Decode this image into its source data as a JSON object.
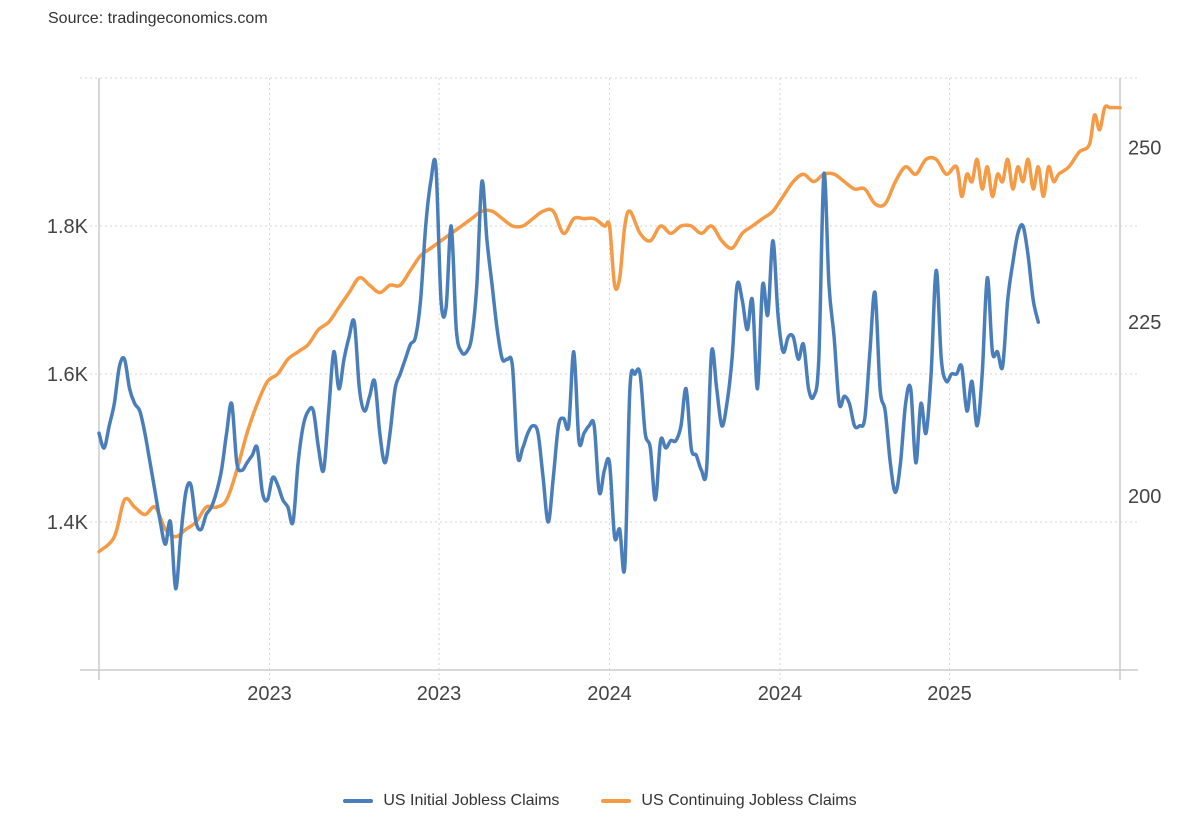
{
  "source": "Source: tradingeconomics.com",
  "colors": {
    "initial": "#4a7ebb",
    "continuing": "#f59a45",
    "grid": "#d6d6d6",
    "axis": "#cccccc"
  },
  "legend": [
    {
      "label": "US Initial Jobless Claims",
      "color": "#4a7ebb"
    },
    {
      "label": "US Continuing Jobless Claims",
      "color": "#f59a45"
    }
  ],
  "chart_data": {
    "type": "line",
    "title": "",
    "xlabel": "",
    "ylabel": "",
    "grid": true,
    "legend_position": "bottom",
    "x_ticks": [
      {
        "label": "2023",
        "t": 0.167
      },
      {
        "label": "2023",
        "t": 0.333
      },
      {
        "label": "2024",
        "t": 0.5
      },
      {
        "label": "2024",
        "t": 0.667
      },
      {
        "label": "2025",
        "t": 0.833
      }
    ],
    "y_left": {
      "ticks": [
        {
          "v": 1.4,
          "label": "1.4K"
        },
        {
          "v": 1.6,
          "label": "1.6K"
        },
        {
          "v": 1.8,
          "label": "1.8K"
        }
      ],
      "range": [
        1.2,
        2.0
      ]
    },
    "y_right": {
      "ticks": [
        {
          "v": 200,
          "label": "200"
        },
        {
          "v": 225,
          "label": "225"
        },
        {
          "v": 250,
          "label": "250"
        }
      ],
      "range": [
        175,
        260
      ]
    },
    "series": [
      {
        "name": "US Continuing Jobless Claims",
        "axis": "left",
        "color": "#f59a45",
        "values": [
          [
            0.0,
            1.36
          ],
          [
            0.015,
            1.38
          ],
          [
            0.025,
            1.43
          ],
          [
            0.035,
            1.42
          ],
          [
            0.045,
            1.41
          ],
          [
            0.055,
            1.42
          ],
          [
            0.065,
            1.39
          ],
          [
            0.075,
            1.38
          ],
          [
            0.085,
            1.39
          ],
          [
            0.095,
            1.4
          ],
          [
            0.105,
            1.42
          ],
          [
            0.115,
            1.42
          ],
          [
            0.125,
            1.43
          ],
          [
            0.135,
            1.47
          ],
          [
            0.145,
            1.52
          ],
          [
            0.155,
            1.56
          ],
          [
            0.165,
            1.59
          ],
          [
            0.175,
            1.6
          ],
          [
            0.185,
            1.62
          ],
          [
            0.195,
            1.63
          ],
          [
            0.205,
            1.64
          ],
          [
            0.215,
            1.66
          ],
          [
            0.225,
            1.67
          ],
          [
            0.235,
            1.69
          ],
          [
            0.245,
            1.71
          ],
          [
            0.255,
            1.73
          ],
          [
            0.265,
            1.72
          ],
          [
            0.275,
            1.71
          ],
          [
            0.285,
            1.72
          ],
          [
            0.295,
            1.72
          ],
          [
            0.305,
            1.74
          ],
          [
            0.315,
            1.76
          ],
          [
            0.325,
            1.77
          ],
          [
            0.335,
            1.78
          ],
          [
            0.345,
            1.79
          ],
          [
            0.355,
            1.8
          ],
          [
            0.365,
            1.81
          ],
          [
            0.375,
            1.82
          ],
          [
            0.385,
            1.82
          ],
          [
            0.395,
            1.81
          ],
          [
            0.405,
            1.8
          ],
          [
            0.415,
            1.8
          ],
          [
            0.425,
            1.81
          ],
          [
            0.435,
            1.82
          ],
          [
            0.445,
            1.82
          ],
          [
            0.455,
            1.79
          ],
          [
            0.465,
            1.81
          ],
          [
            0.475,
            1.81
          ],
          [
            0.485,
            1.81
          ],
          [
            0.495,
            1.8
          ],
          [
            0.5,
            1.8
          ],
          [
            0.505,
            1.72
          ],
          [
            0.51,
            1.73
          ],
          [
            0.515,
            1.8
          ],
          [
            0.52,
            1.82
          ],
          [
            0.53,
            1.79
          ],
          [
            0.54,
            1.78
          ],
          [
            0.55,
            1.8
          ],
          [
            0.56,
            1.79
          ],
          [
            0.57,
            1.8
          ],
          [
            0.58,
            1.8
          ],
          [
            0.59,
            1.79
          ],
          [
            0.6,
            1.8
          ],
          [
            0.61,
            1.78
          ],
          [
            0.62,
            1.77
          ],
          [
            0.63,
            1.79
          ],
          [
            0.64,
            1.8
          ],
          [
            0.65,
            1.81
          ],
          [
            0.66,
            1.82
          ],
          [
            0.67,
            1.84
          ],
          [
            0.68,
            1.86
          ],
          [
            0.69,
            1.87
          ],
          [
            0.7,
            1.86
          ],
          [
            0.71,
            1.87
          ],
          [
            0.72,
            1.87
          ],
          [
            0.73,
            1.86
          ],
          [
            0.74,
            1.85
          ],
          [
            0.75,
            1.85
          ],
          [
            0.76,
            1.83
          ],
          [
            0.77,
            1.83
          ],
          [
            0.78,
            1.86
          ],
          [
            0.79,
            1.88
          ],
          [
            0.8,
            1.87
          ],
          [
            0.81,
            1.89
          ],
          [
            0.82,
            1.89
          ],
          [
            0.83,
            1.87
          ],
          [
            0.84,
            1.88
          ],
          [
            0.845,
            1.84
          ],
          [
            0.85,
            1.87
          ],
          [
            0.855,
            1.86
          ],
          [
            0.86,
            1.89
          ],
          [
            0.865,
            1.85
          ],
          [
            0.87,
            1.88
          ],
          [
            0.875,
            1.84
          ],
          [
            0.88,
            1.87
          ],
          [
            0.885,
            1.86
          ],
          [
            0.89,
            1.89
          ],
          [
            0.895,
            1.85
          ],
          [
            0.9,
            1.88
          ],
          [
            0.905,
            1.86
          ],
          [
            0.91,
            1.89
          ],
          [
            0.915,
            1.85
          ],
          [
            0.92,
            1.88
          ],
          [
            0.925,
            1.84
          ],
          [
            0.93,
            1.88
          ],
          [
            0.935,
            1.86
          ],
          [
            0.94,
            1.87
          ],
          [
            0.95,
            1.88
          ],
          [
            0.96,
            1.9
          ],
          [
            0.97,
            1.91
          ],
          [
            0.975,
            1.95
          ],
          [
            0.98,
            1.93
          ],
          [
            0.985,
            1.96
          ],
          [
            0.99,
            1.96
          ],
          [
            0.995,
            1.96
          ],
          [
            1.0,
            1.96
          ]
        ]
      },
      {
        "name": "US Initial Jobless Claims",
        "axis": "left",
        "color": "#4a7ebb",
        "values": [
          [
            0.0,
            1.52
          ],
          [
            0.005,
            1.5
          ],
          [
            0.01,
            1.53
          ],
          [
            0.015,
            1.56
          ],
          [
            0.02,
            1.61
          ],
          [
            0.025,
            1.62
          ],
          [
            0.03,
            1.58
          ],
          [
            0.035,
            1.56
          ],
          [
            0.04,
            1.55
          ],
          [
            0.045,
            1.52
          ],
          [
            0.05,
            1.48
          ],
          [
            0.055,
            1.44
          ],
          [
            0.06,
            1.4
          ],
          [
            0.065,
            1.37
          ],
          [
            0.07,
            1.4
          ],
          [
            0.075,
            1.31
          ],
          [
            0.08,
            1.38
          ],
          [
            0.085,
            1.44
          ],
          [
            0.09,
            1.45
          ],
          [
            0.095,
            1.4
          ],
          [
            0.1,
            1.39
          ],
          [
            0.105,
            1.41
          ],
          [
            0.11,
            1.42
          ],
          [
            0.115,
            1.44
          ],
          [
            0.12,
            1.47
          ],
          [
            0.125,
            1.52
          ],
          [
            0.13,
            1.56
          ],
          [
            0.135,
            1.48
          ],
          [
            0.14,
            1.47
          ],
          [
            0.145,
            1.48
          ],
          [
            0.15,
            1.49
          ],
          [
            0.155,
            1.5
          ],
          [
            0.16,
            1.44
          ],
          [
            0.165,
            1.43
          ],
          [
            0.17,
            1.46
          ],
          [
            0.175,
            1.45
          ],
          [
            0.18,
            1.43
          ],
          [
            0.185,
            1.42
          ],
          [
            0.19,
            1.4
          ],
          [
            0.195,
            1.48
          ],
          [
            0.2,
            1.53
          ],
          [
            0.205,
            1.55
          ],
          [
            0.21,
            1.55
          ],
          [
            0.215,
            1.5
          ],
          [
            0.22,
            1.47
          ],
          [
            0.225,
            1.55
          ],
          [
            0.23,
            1.63
          ],
          [
            0.235,
            1.58
          ],
          [
            0.24,
            1.62
          ],
          [
            0.245,
            1.65
          ],
          [
            0.25,
            1.67
          ],
          [
            0.255,
            1.58
          ],
          [
            0.26,
            1.55
          ],
          [
            0.265,
            1.57
          ],
          [
            0.27,
            1.59
          ],
          [
            0.275,
            1.52
          ],
          [
            0.28,
            1.48
          ],
          [
            0.285,
            1.52
          ],
          [
            0.29,
            1.58
          ],
          [
            0.295,
            1.6
          ],
          [
            0.3,
            1.62
          ],
          [
            0.305,
            1.64
          ],
          [
            0.31,
            1.65
          ],
          [
            0.315,
            1.7
          ],
          [
            0.32,
            1.8
          ],
          [
            0.325,
            1.86
          ],
          [
            0.33,
            1.88
          ],
          [
            0.335,
            1.7
          ],
          [
            0.34,
            1.69
          ],
          [
            0.345,
            1.8
          ],
          [
            0.35,
            1.66
          ],
          [
            0.355,
            1.63
          ],
          [
            0.36,
            1.63
          ],
          [
            0.365,
            1.65
          ],
          [
            0.37,
            1.72
          ],
          [
            0.375,
            1.86
          ],
          [
            0.38,
            1.78
          ],
          [
            0.385,
            1.72
          ],
          [
            0.39,
            1.66
          ],
          [
            0.395,
            1.62
          ],
          [
            0.4,
            1.62
          ],
          [
            0.405,
            1.61
          ],
          [
            0.41,
            1.49
          ],
          [
            0.415,
            1.5
          ],
          [
            0.42,
            1.52
          ],
          [
            0.425,
            1.53
          ],
          [
            0.43,
            1.52
          ],
          [
            0.435,
            1.46
          ],
          [
            0.44,
            1.4
          ],
          [
            0.445,
            1.46
          ],
          [
            0.45,
            1.53
          ],
          [
            0.455,
            1.54
          ],
          [
            0.46,
            1.53
          ],
          [
            0.465,
            1.63
          ],
          [
            0.47,
            1.51
          ],
          [
            0.475,
            1.52
          ],
          [
            0.48,
            1.53
          ],
          [
            0.485,
            1.53
          ],
          [
            0.49,
            1.44
          ],
          [
            0.495,
            1.47
          ],
          [
            0.5,
            1.48
          ],
          [
            0.505,
            1.38
          ],
          [
            0.51,
            1.39
          ],
          [
            0.515,
            1.34
          ],
          [
            0.52,
            1.58
          ],
          [
            0.525,
            1.6
          ],
          [
            0.53,
            1.6
          ],
          [
            0.535,
            1.52
          ],
          [
            0.54,
            1.5
          ],
          [
            0.545,
            1.43
          ],
          [
            0.55,
            1.51
          ],
          [
            0.555,
            1.5
          ],
          [
            0.56,
            1.51
          ],
          [
            0.565,
            1.51
          ],
          [
            0.57,
            1.53
          ],
          [
            0.575,
            1.58
          ],
          [
            0.58,
            1.5
          ],
          [
            0.585,
            1.49
          ],
          [
            0.59,
            1.47
          ],
          [
            0.595,
            1.47
          ],
          [
            0.6,
            1.63
          ],
          [
            0.605,
            1.58
          ],
          [
            0.61,
            1.53
          ],
          [
            0.615,
            1.56
          ],
          [
            0.62,
            1.62
          ],
          [
            0.625,
            1.72
          ],
          [
            0.63,
            1.7
          ],
          [
            0.635,
            1.66
          ],
          [
            0.64,
            1.7
          ],
          [
            0.645,
            1.58
          ],
          [
            0.65,
            1.72
          ],
          [
            0.655,
            1.68
          ],
          [
            0.66,
            1.78
          ],
          [
            0.665,
            1.68
          ],
          [
            0.67,
            1.63
          ],
          [
            0.675,
            1.65
          ],
          [
            0.68,
            1.65
          ],
          [
            0.685,
            1.62
          ],
          [
            0.69,
            1.64
          ],
          [
            0.695,
            1.58
          ],
          [
            0.7,
            1.57
          ],
          [
            0.705,
            1.62
          ],
          [
            0.71,
            1.87
          ],
          [
            0.715,
            1.72
          ],
          [
            0.72,
            1.65
          ],
          [
            0.725,
            1.56
          ],
          [
            0.73,
            1.57
          ],
          [
            0.735,
            1.56
          ],
          [
            0.74,
            1.53
          ],
          [
            0.745,
            1.53
          ],
          [
            0.75,
            1.54
          ],
          [
            0.755,
            1.63
          ],
          [
            0.76,
            1.71
          ],
          [
            0.765,
            1.58
          ],
          [
            0.77,
            1.55
          ],
          [
            0.775,
            1.48
          ],
          [
            0.78,
            1.44
          ],
          [
            0.785,
            1.48
          ],
          [
            0.79,
            1.56
          ],
          [
            0.795,
            1.58
          ],
          [
            0.8,
            1.48
          ],
          [
            0.805,
            1.56
          ],
          [
            0.81,
            1.52
          ],
          [
            0.815,
            1.6
          ],
          [
            0.82,
            1.74
          ],
          [
            0.825,
            1.62
          ],
          [
            0.83,
            1.59
          ],
          [
            0.835,
            1.6
          ],
          [
            0.84,
            1.6
          ],
          [
            0.845,
            1.61
          ],
          [
            0.85,
            1.55
          ],
          [
            0.855,
            1.59
          ],
          [
            0.86,
            1.53
          ],
          [
            0.865,
            1.6
          ],
          [
            0.87,
            1.73
          ],
          [
            0.875,
            1.63
          ],
          [
            0.88,
            1.63
          ],
          [
            0.885,
            1.61
          ],
          [
            0.89,
            1.7
          ],
          [
            0.895,
            1.75
          ],
          [
            0.9,
            1.79
          ],
          [
            0.905,
            1.8
          ],
          [
            0.91,
            1.76
          ],
          [
            0.915,
            1.7
          ],
          [
            0.92,
            1.67
          ]
        ]
      }
    ]
  }
}
